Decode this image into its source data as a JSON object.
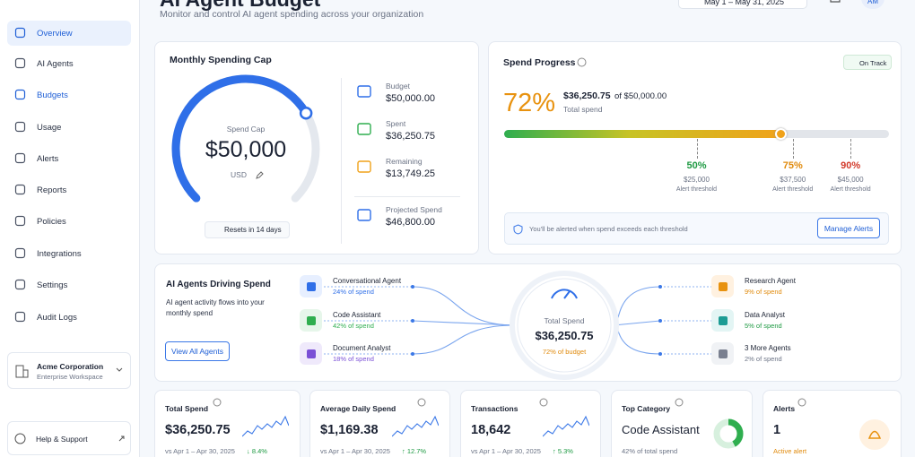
{
  "header": {
    "title": "AI Agent Budget",
    "subtitle": "Monitor and control AI agent spending across your organization",
    "date_range": "May 1 – May 31, 2025",
    "avatar": "AM"
  },
  "sidebar": {
    "nav": [
      "Overview",
      "AI Agents",
      "Budgets",
      "Usage",
      "Alerts",
      "Reports",
      "Policies",
      "Integrations",
      "Settings",
      "Audit Logs"
    ],
    "workspace": {
      "name": "Acme Corporation",
      "type": "Enterprise Workspace"
    },
    "help": "Help & Support"
  },
  "spending_cap": {
    "title": "Monthly Spending Cap",
    "gauge_label": "Spend Cap",
    "amount": "$50,000",
    "currency": "USD",
    "reset": "Resets in 14 days",
    "items": [
      {
        "label": "Budget",
        "value": "$50,000.00"
      },
      {
        "label": "Spent",
        "value": "$36,250.75"
      },
      {
        "label": "Remaining",
        "value": "$13,749.25"
      },
      {
        "label": "Projected Spend",
        "value": "$46,800.00"
      }
    ]
  },
  "spend_progress": {
    "title": "Spend Progress",
    "status": "On Track",
    "percent": "72%",
    "spent": "$36,250.75",
    "of_budget": "of $50,000.00",
    "caption": "Total spend",
    "thresholds": [
      {
        "percent": "50%",
        "amount": "$25,000",
        "label": "Alert threshold"
      },
      {
        "percent": "75%",
        "amount": "$37,500",
        "label": "Alert threshold"
      },
      {
        "percent": "90%",
        "amount": "$45,000",
        "label": "Alert threshold"
      }
    ],
    "notice": "You'll be alerted when spend exceeds each threshold",
    "button": "Manage Alerts"
  },
  "agents": {
    "title": "AI Agents Driving Spend",
    "description": "AI agent activity flows into your monthly spend",
    "button": "View All Agents",
    "center": {
      "label": "Total Spend",
      "amount": "$36,250.75",
      "note": "72% of budget"
    },
    "left": [
      {
        "name": "Conversational Agent",
        "share": "24% of spend"
      },
      {
        "name": "Code Assistant",
        "share": "42% of spend"
      },
      {
        "name": "Document Analyst",
        "share": "18% of spend"
      }
    ],
    "right": [
      {
        "name": "Research Agent",
        "share": "9% of spend"
      },
      {
        "name": "Data Analyst",
        "share": "5% of spend"
      },
      {
        "name": "3 More Agents",
        "share": "2% of spend"
      }
    ]
  },
  "metrics": [
    {
      "title": "Total Spend",
      "value": "$36,250.75",
      "comparison": "vs Apr 1 – Apr 30, 2025",
      "change": "↓ 8.4%"
    },
    {
      "title": "Average Daily Spend",
      "value": "$1,169.38",
      "comparison": "vs Apr 1 – Apr 30, 2025",
      "change": "↑ 12.7%"
    },
    {
      "title": "Transactions",
      "value": "18,642",
      "comparison": "vs Apr 1 – Apr 30, 2025",
      "change": "↑ 5.3%"
    },
    {
      "title": "Top Category",
      "value": "Code Assistant",
      "comparison": "42% of total spend"
    },
    {
      "title": "Alerts",
      "value": "1",
      "comparison": "Active alert"
    }
  ]
}
